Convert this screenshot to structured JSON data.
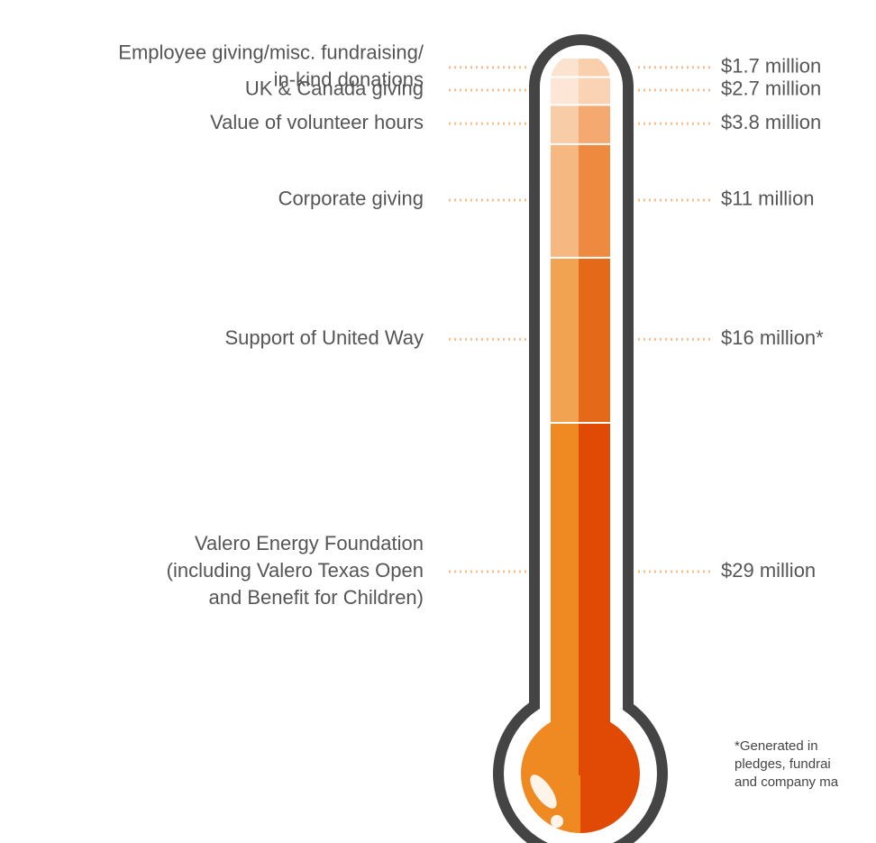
{
  "chart_data": {
    "type": "thermometer",
    "categories": [
      [
        "Employee giving/misc. fundraising/",
        "in-kind donations"
      ],
      [
        "UK & Canada giving"
      ],
      [
        "Value of volunteer hours"
      ],
      [
        "Corporate giving"
      ],
      [
        "Support of United Way"
      ],
      [
        "Valero Energy Foundation",
        "(including Valero Texas Open",
        "and Benefit for Children)"
      ]
    ],
    "values": [
      1.7,
      2.7,
      3.8,
      11,
      16,
      29
    ],
    "value_labels": [
      "$1.7 million",
      "$2.7 million",
      "$3.8 million",
      "$11 million",
      "$16 million*",
      "$29 million"
    ],
    "light_colors": [
      "#fce3cf",
      "#fde6d6",
      "#f8cca6",
      "#f5b880",
      "#f2a352",
      "#ef8a22"
    ],
    "colors": [
      "#f9cfac",
      "#f9d3b3",
      "#f3a96f",
      "#ee8a3f",
      "#e46a1a",
      "#e04a05"
    ],
    "footnote": [
      "*Generated in",
      "pledges, fundrai",
      "and company ma"
    ]
  }
}
